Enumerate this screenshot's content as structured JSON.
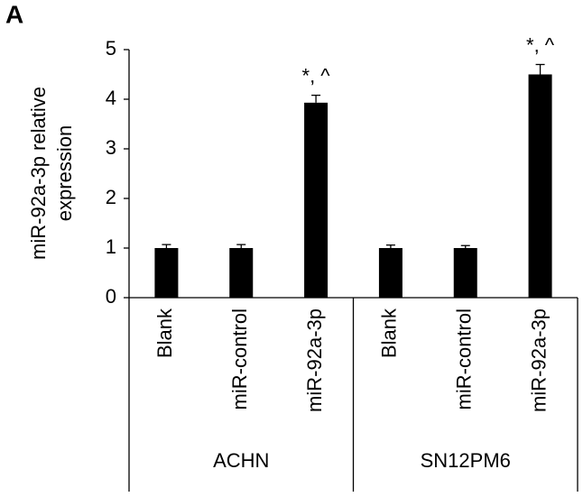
{
  "chart_data": {
    "type": "bar",
    "panel_label": "A",
    "y_label": [
      "miR-92a-3p relative",
      "expression"
    ],
    "categories": [
      "Blank",
      "miR-control",
      "miR-92a-3p",
      "Blank",
      "miR-control",
      "miR-92a-3p"
    ],
    "groups": [
      {
        "name": "ACHN",
        "size": 3
      },
      {
        "name": "SN12PM6",
        "size": 3
      }
    ],
    "values": [
      1.0,
      1.0,
      3.93,
      1.0,
      1.0,
      4.5
    ],
    "errors": [
      0.07,
      0.07,
      0.15,
      0.06,
      0.05,
      0.2
    ],
    "annotations": [
      {
        "index": 2,
        "text": "*, ^"
      },
      {
        "index": 5,
        "text": "*, ^"
      }
    ],
    "color": "#000000",
    "ylim": [
      0,
      5
    ],
    "yticks": [
      0,
      1,
      2,
      3,
      4,
      5
    ],
    "grid": false
  }
}
